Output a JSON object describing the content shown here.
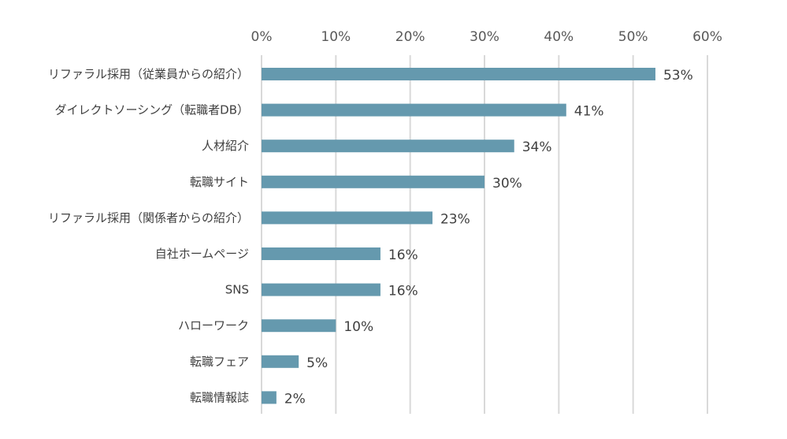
{
  "chart_data": {
    "type": "bar",
    "orientation": "horizontal",
    "categories": [
      "リファラル採用（従業員からの紹介）",
      "ダイレクトソーシング（転職者DB）",
      "人材紹介",
      "転職サイト",
      "リファラル採用（関係者からの紹介）",
      "自社ホームページ",
      "SNS",
      "ハローワーク",
      "転職フェア",
      "転職情報誌"
    ],
    "values": [
      53,
      41,
      34,
      30,
      23,
      16,
      16,
      10,
      5,
      2
    ],
    "value_labels": [
      "53%",
      "41%",
      "34%",
      "30%",
      "23%",
      "16%",
      "16%",
      "10%",
      "5%",
      "2%"
    ],
    "xlim": [
      0,
      60
    ],
    "x_ticks": [
      0,
      10,
      20,
      30,
      40,
      50,
      60
    ],
    "x_tick_labels": [
      "0%",
      "10%",
      "20%",
      "30%",
      "40%",
      "50%",
      "60%"
    ],
    "x_axis_position": "top",
    "grid": true,
    "legend": "none",
    "bar_color": "#6599ae",
    "grid_color": "#d9d9d9"
  }
}
